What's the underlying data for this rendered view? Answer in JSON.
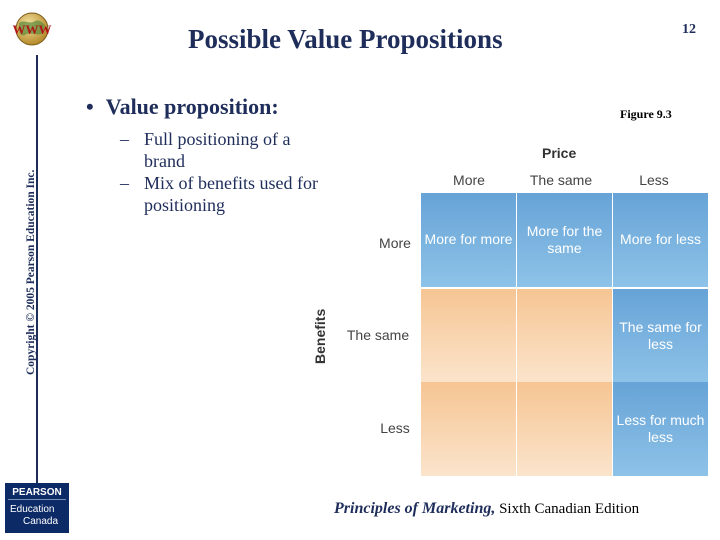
{
  "header": {
    "title": "Possible Value Propositions",
    "slide_number": "12",
    "logo": "www-globe-icon"
  },
  "side": {
    "copyright": "Copyright © 2005 Pearson Education Inc."
  },
  "content": {
    "bullet": "Value proposition:",
    "sub_items": [
      "Full positioning of a brand",
      "Mix of benefits used for positioning"
    ]
  },
  "figure": {
    "label": "Figure 9.3",
    "price_label": "Price",
    "benefits_label": "Benefits",
    "price_columns": [
      "More",
      "The same",
      "Less"
    ],
    "benefit_rows": [
      "More",
      "The same",
      "Less"
    ],
    "cells": [
      [
        "More for more",
        "More for the same",
        "More for less"
      ],
      [
        "",
        "",
        "The same for less"
      ],
      [
        "",
        "",
        "Less for much less"
      ]
    ],
    "colors": {
      "winning": "#6fa8da",
      "losing": "#f8d3ad"
    }
  },
  "footer": {
    "book_title": "Principles of Marketing,",
    "edition": "Sixth Canadian Edition",
    "publisher_top": "PEARSON",
    "publisher_line1": "Education",
    "publisher_line2": "Canada"
  }
}
